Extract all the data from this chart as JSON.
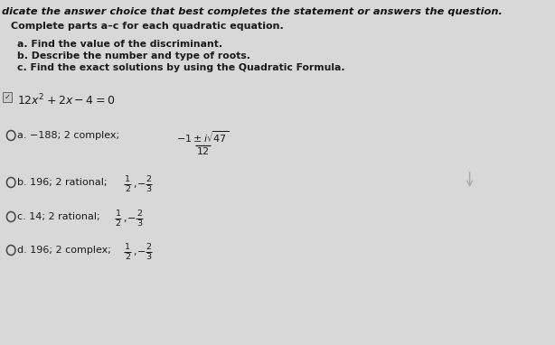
{
  "bg_color": "#d8d8d8",
  "header_text": "dicate the answer choice that best completes the statement or answers the question.",
  "subheader": "Complete parts a–c for each quadratic equation.",
  "instructions": [
    "a. Find the value of the discriminant.",
    "b. Describe the number and type of roots.",
    "c. Find the exact solutions by using the Quadratic Formula."
  ],
  "text_color": "#1a1a1a",
  "circle_color": "#444444",
  "header_italic": true,
  "choice_a_text": "a. −188; 2 complex; ",
  "choice_b_text": "b. 196; 2 rational; ",
  "choice_c_text": "c. 14; 2 rational; ",
  "choice_d_text": "d. 196; 2 complex; "
}
